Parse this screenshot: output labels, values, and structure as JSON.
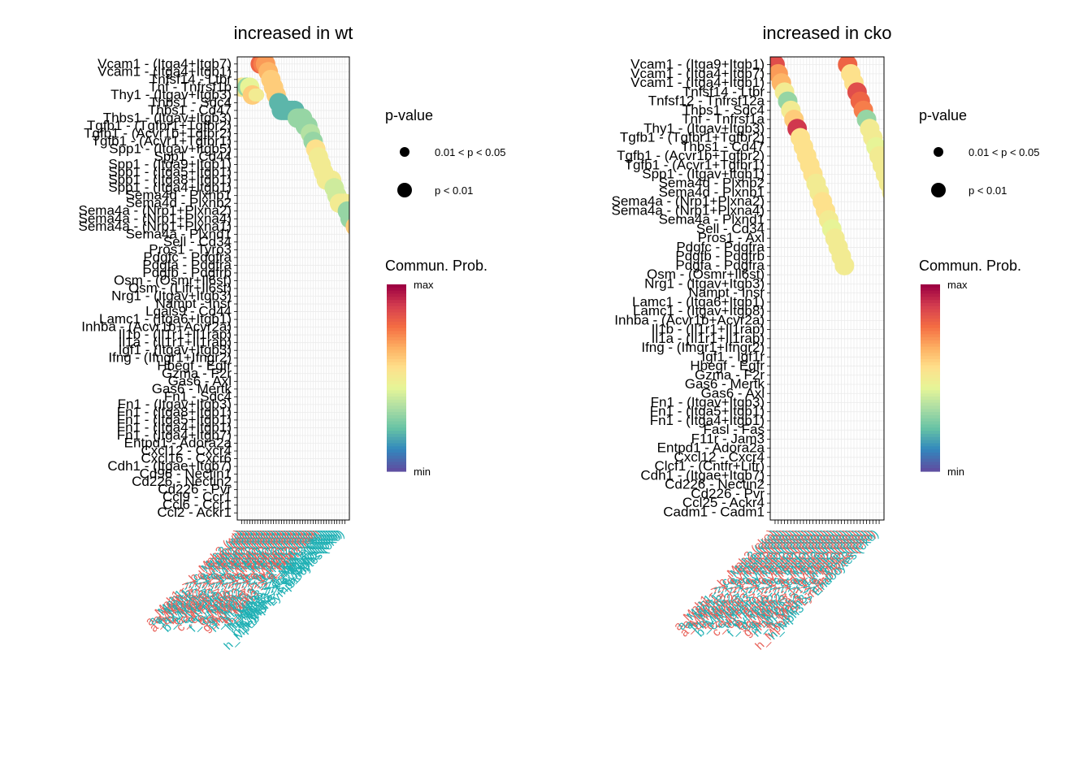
{
  "chart_data": [
    {
      "type": "scatter",
      "title": "increased in wt",
      "y_labels": [
        "Vcam1 - (Itga4+Itgb7)",
        "Vcam1 - (Itga4+Itgb1)",
        "Tnfsf14 - Ltbr",
        "Tnf - Tnfrsf1b",
        "Thy1 - (Itgav+Itgb3)",
        "Thbs1 - Sdc4",
        "Thbs1 - Cd47",
        "Thbs1 - (Itgav+Itgb3)",
        "Tgfb1 - (Tgfbr1+Tgfbr2)",
        "Tgfb1 - (Acvr1b+Tgfbr2)",
        "Tgfb1 - (Acvr1+Tgfbr1)",
        "Spp1 - (Itgav+Itgb5)",
        "Spp1 - Cd44",
        "Spp1 - (Itga9+Itgb1)",
        "Spp1 - (Itga5+Itgb1)",
        "Spp1 - (Itga8+Itgb1)",
        "Spp1 - (Itga4+Itgb1)",
        "Sema4d - Plxnb1",
        "Sema4d - Plxnb2",
        "Sema4a - (Nrp1+Plxna2)",
        "Sema4a - (Nrp1+Plxna4)",
        "Sema4a - (Nrp1+Plxna1)",
        "Sema4a - Plxnd1",
        "Sell - Cd34",
        "Pros1 - Tyro3",
        "Pdgfc - Pdgfra",
        "Pdgfa - Pdgfra",
        "Pdgfb - Pdgfrb",
        "Osm - (Osmr+Il6st)",
        "Osm - (Lifr+Il6st)",
        "Nrg1 - (Itgav+Itgb3)",
        "Nampt - Insr",
        "Lgals9 - Cd44",
        "Lamc1 - (Itga6+Itgb1)",
        "Inhba - (Acvr1b+Acvr2a)",
        "Il1b - (Il1r1+Il1rap)",
        "Il1a - (Il1r1+Il1rap)",
        "Igf1 - (Itgav+Itgb3)",
        "Ifng - (Ifngr1+Ifngr2)",
        "Hbegf - Egfr",
        "Gzma - F2r",
        "Gas6 - Axl",
        "Gas6 - Mertk",
        "Fn1 - Sdc4",
        "Fn1 - (Itgav+Itgb3)",
        "Fn1 - (Itga8+Itgb1)",
        "Fn1 - (Itga5+Itgb1)",
        "Fn1 - (Itga4+Itgb1)",
        "Fn1 - (Itga4+Itgb7)",
        "Entpd1 - Adora2a",
        "Cxcl12 - Cxcr4",
        "Cxcl16 - Cxcr6",
        "Cdh1 - (Itgae+Itgb7)",
        "Cd96 - Nectin1",
        "Cd226 - Nectin2",
        "Cd226 - Pvr",
        "Ccl9 - Ccr1",
        "Ccl6 - Ccr1",
        "Ccl2 - Ackr1"
      ],
      "x_labels": [
        "a_Mph1 -> b_Mph2 (wt)",
        "a_Mph1 -> c_Mph3 (wt)",
        "a_Mph1 -> d_Fibro (wt)",
        "a_Mph1 -> e_Endo (wt)",
        "a_Mph1 -> f_Lympho (wt)",
        "b_Mph2 -> a_Mph1 (wt)",
        "b_Mph2 -> c_Mph3 (wt)",
        "b_Mph2 -> d_Fibro (wt)",
        "b_Mph2 -> e_Endo (wt)",
        "b_Mph2 -> f_Lympho (wt)",
        "c_Mph3 -> a_Mph1 (wt)",
        "c_Mph3 -> b_Mph2 (wt)",
        "c_Mph3 -> d_Fibro (wt)",
        "c_Mph3 -> e_Endo (wt)",
        "c_Mph3 -> f_Lympho (wt)",
        "d_Fibro -> a_Mph1 (wt)",
        "d_Fibro -> b_Mph2 (wt)",
        "d_Fibro -> e_Endo (wt)",
        "e_Endo -> d_Fibro (wt)",
        "f_Lympho -> a_Mph1 (wt)",
        "g_Mph2 -> b_Mph2 (wt)",
        "g_Mph2 -> c_Mph3 (wt)",
        "g_Mph2 -> d_Fibro (wt)",
        "g_Mph2 -> e_Endo (wt)",
        "g_Mph2 -> f_Lympho (wt)",
        "h_Mph3 -> g_Mph2 (wt)",
        "h_Mph3 -> b_Mph2 (wt)",
        "h_Mph3 -> f_Lympho (wt)",
        "h_Mph3 -> d_Fibro (wt)",
        "h_Mph3 -> e_Endo (wt)",
        "h_Mph3 -> a_Mph1 (wt)",
        "h_Mph3 -> c_Mph3 (wt)",
        "h_Mph3 -> a_Mph1 (cko)",
        "h_Mph3 -> b_Mph2 (cko)",
        "h_Mph3 -> c_Mph3 (cko)",
        "h_Mph3 -> d_Fibro (cko)",
        "h_Mph3 -> e_Endo (cko)",
        "h_Mph3 -> f_Lympho (cko)",
        "h_Mph3 -> g_Mph2 (cko)",
        "h_Mph3 -> Lymphocytes (cko)"
      ],
      "points": [
        [
          0,
          3,
          0.55,
          1
        ],
        [
          1,
          3,
          0.5,
          1
        ],
        [
          2,
          3,
          0.3,
          1
        ],
        [
          3,
          3,
          0.45,
          1
        ],
        [
          4,
          4,
          0.6,
          1
        ],
        [
          5,
          4,
          0.5,
          0
        ],
        [
          6,
          4,
          0.5,
          0
        ],
        [
          7,
          0,
          0.8,
          1
        ],
        [
          8,
          0,
          0.75,
          1
        ],
        [
          9,
          0,
          0.7,
          1
        ],
        [
          10,
          1,
          0.65,
          1
        ],
        [
          11,
          2,
          0.6,
          1
        ],
        [
          12,
          3,
          0.6,
          1
        ],
        [
          13,
          4,
          0.6,
          1
        ],
        [
          14,
          5,
          0.2,
          1
        ],
        [
          15,
          6,
          0.2,
          1
        ],
        [
          16,
          6,
          0.2,
          1
        ],
        [
          17,
          6,
          0.2,
          1
        ],
        [
          18,
          6,
          0.2,
          1
        ],
        [
          19,
          6,
          0.2,
          1
        ],
        [
          20,
          6,
          0.2,
          1
        ],
        [
          21,
          7,
          0.3,
          1
        ],
        [
          22,
          7,
          0.3,
          1
        ],
        [
          23,
          7,
          0.3,
          1
        ],
        [
          24,
          8,
          0.3,
          1
        ],
        [
          25,
          8,
          0.3,
          1
        ],
        [
          26,
          9,
          0.35,
          1
        ],
        [
          27,
          10,
          0.3,
          1
        ],
        [
          28,
          11,
          0.55,
          1
        ],
        [
          29,
          12,
          0.5,
          1
        ],
        [
          30,
          13,
          0.5,
          1
        ],
        [
          31,
          14,
          0.5,
          1
        ],
        [
          32,
          15,
          0.5,
          1
        ],
        [
          33,
          15,
          0.5,
          1
        ],
        [
          34,
          15,
          0.5,
          1
        ],
        [
          35,
          16,
          0.4,
          1
        ],
        [
          36,
          17,
          0.4,
          1
        ],
        [
          37,
          18,
          0.5,
          1
        ],
        [
          38,
          18,
          0.5,
          1
        ],
        [
          39,
          18,
          0.5,
          1
        ],
        [
          40,
          19,
          0.3,
          1
        ],
        [
          41,
          20,
          0.3,
          1
        ],
        [
          42,
          20,
          0.3,
          1
        ],
        [
          43,
          21,
          0.6,
          1
        ],
        [
          44,
          21,
          0.6,
          1
        ],
        [
          45,
          22,
          0.5,
          1
        ],
        [
          46,
          22,
          0.5,
          1
        ],
        [
          47,
          22,
          0.5,
          1
        ],
        [
          48,
          22,
          0.5,
          1
        ],
        [
          49,
          23,
          0.25,
          1
        ],
        [
          50,
          24,
          0.25,
          1
        ],
        [
          51,
          25,
          0.25,
          1
        ],
        [
          52,
          25,
          0.25,
          1
        ],
        [
          53,
          26,
          0.25,
          1
        ],
        [
          54,
          26,
          0.25,
          1
        ],
        [
          55,
          27,
          0.25,
          1
        ],
        [
          56,
          27,
          0.25,
          1
        ],
        [
          57,
          28,
          0.25,
          1
        ],
        [
          58,
          28,
          0.25,
          1
        ]
      ]
    },
    {
      "type": "scatter",
      "title": "increased in cko",
      "y_labels": [
        "Vcam1 - (Itga9+Itgb1)",
        "Vcam1 - (Itga4+Itgb7)",
        "Vcam1 - (Itga4+Itgb1)",
        "Tnfsf14 - Ltbr",
        "Tnfsf12 - Tnfrsf12a",
        "Thbs1 - Sdc4",
        "Tnf - Tnfrsf1a",
        "Thy1 - (Itgav+Itgb3)",
        "Tgfb1 - (Tgfbr1+Tgfbr2)",
        "Thbs1 - Cd47",
        "Tgfb1 - (Acvr1b+Tgfbr2)",
        "Tgfb1 - (Acvr1+Tgfbr1)",
        "Spp1 - (Itgav+Itgb1)",
        "Sema4d - Plxnb2",
        "Sema4d - Plxnb1",
        "Sema4a - (Nrp1+Plxna2)",
        "Sema4a - (Nrp1+Plxna4)",
        "Sema4a - Plxnd1",
        "Sell - Cd34",
        "Pros1 - Axl",
        "Pdgfc - Pdgfra",
        "Pdgfb - Pdgfrb",
        "Pdgfa - Pdgfra",
        "Osm - (Osmr+Il6st)",
        "Nrg1 - (Itgav+Itgb3)",
        "Nampt - Insr",
        "Lamc1 - (Itga6+Itgb1)",
        "Lamc1 - (Itgav+Itgb8)",
        "Inhba - (Acvr1b+Acvr2a)",
        "Il1b - (Il1r1+Il1rap)",
        "Il1a - (Il1r1+Il1rap)",
        "Ifng - (Ifngr1+Ifngr2)",
        "Igf1 - Igf1r",
        "Hbegf - Egfr",
        "Gzma - F2r",
        "Gas6 - Mertk",
        "Gas6 - Axl",
        "Fn1 - (Itgav+Itgb3)",
        "Fn1 - (Itga5+Itgb1)",
        "Fn1 - (Itga4+Itgb1)",
        "Fasl - Fas",
        "F11r - Jam3",
        "Entpd1 - Adora2a",
        "Cxcl12 - Cxcr4",
        "Clcf1 - (Cntfr+Lifr)",
        "Cdh1 - (Itgae+Itgb7)",
        "Cd226 - Nectin2",
        "Cd226 - Pvr",
        "Ccl25 - Ackr4",
        "Cadm1 - Cadm1"
      ],
      "x_labels": [
        "a_Mph1 -> b_Mph2 (cko)",
        "a_Mph1 -> c_Mph3 (cko)",
        "a_Mph1 -> d_Fibro (cko)",
        "a_Mph1 -> e_Endo (cko)",
        "a_Mph1 -> f_Lympho (cko)",
        "b_Mph2 -> a_Mph1 (cko)",
        "b_Mph2 -> c_Mph3 (cko)",
        "b_Mph2 -> d_Fibro (cko)",
        "b_Mph2 -> e_Endo (cko)",
        "b_Mph2 -> f_Lympho (cko)",
        "c_Mph3 -> a_Mph1 (cko)",
        "c_Mph3 -> b_Mph2 (cko)",
        "c_Mph3 -> d_Fibro (cko)",
        "c_Mph3 -> e_Endo (cko)",
        "c_Mph3 -> f_Lympho (cko)",
        "d_Fibro -> a_Mph1 (cko)",
        "d_Fibro -> b_Mph2 (cko)",
        "d_Fibro -> e_Endo (cko)",
        "e_Endo -> d_Fibro (cko)",
        "f_Lympho -> a_Mph1 (cko)",
        "g_Mph2 -> b_Mph2 (cko)",
        "g_Mph2 -> c_Mph3 (cko)",
        "g_Mph2 -> d_Fibro (cko)",
        "g_Mph2 -> e_Endo (cko)",
        "g_Mph2 -> f_Lympho (cko)",
        "h_Mph3 -> g_Mph2 (cko)",
        "h_Mph3 -> b_Mph2 (cko)",
        "h_Mph3 -> f_Lympho (cko)",
        "h_Mph3 -> d_Fibro (cko)",
        "h_Mph3 -> e_Endo (cko)",
        "h_Mph3 -> a_Mph1 (cko)",
        "h_Mph3 -> c_Mph3 (cko)",
        "h_Mph3 -> Lymphocytes (cko)",
        "h_Mph3 -> Endocytes (cko)"
      ],
      "points": [
        [
          0,
          0,
          0.85,
          1
        ],
        [
          1,
          1,
          0.7,
          1
        ],
        [
          2,
          2,
          0.65,
          1
        ],
        [
          3,
          3,
          0.5,
          1
        ],
        [
          4,
          4,
          0.3,
          1
        ],
        [
          5,
          5,
          0.5,
          1
        ],
        [
          6,
          6,
          0.6,
          1
        ],
        [
          7,
          7,
          0.9,
          1
        ],
        [
          8,
          8,
          0.55,
          1
        ],
        [
          9,
          9,
          0.55,
          1
        ],
        [
          10,
          10,
          0.55,
          1
        ],
        [
          11,
          11,
          0.55,
          1
        ],
        [
          12,
          12,
          0.55,
          1
        ],
        [
          13,
          13,
          0.5,
          1
        ],
        [
          14,
          14,
          0.5,
          1
        ],
        [
          15,
          15,
          0.55,
          1
        ],
        [
          16,
          16,
          0.55,
          1
        ],
        [
          17,
          17,
          0.5,
          1
        ],
        [
          18,
          18,
          0.45,
          1
        ],
        [
          19,
          19,
          0.5,
          1
        ],
        [
          20,
          20,
          0.5,
          1
        ],
        [
          21,
          21,
          0.5,
          1
        ],
        [
          22,
          22,
          0.5,
          1
        ],
        [
          23,
          0,
          0.8,
          1
        ],
        [
          24,
          1,
          0.55,
          1
        ],
        [
          25,
          2,
          0.55,
          1
        ],
        [
          26,
          3,
          0.85,
          1
        ],
        [
          27,
          4,
          0.8,
          1
        ],
        [
          28,
          5,
          0.75,
          1
        ],
        [
          29,
          6,
          0.3,
          1
        ],
        [
          30,
          7,
          0.5,
          1
        ],
        [
          31,
          8,
          0.5,
          1
        ],
        [
          32,
          9,
          0.45,
          1
        ],
        [
          33,
          10,
          0.5,
          1
        ],
        [
          34,
          11,
          0.5,
          1
        ],
        [
          35,
          12,
          0.5,
          1
        ],
        [
          36,
          13,
          0.5,
          1
        ],
        [
          37,
          14,
          0.5,
          1
        ],
        [
          38,
          15,
          0.5,
          1
        ],
        [
          39,
          16,
          0.55,
          1
        ],
        [
          40,
          17,
          0.55,
          1
        ],
        [
          41,
          18,
          0.5,
          1
        ],
        [
          42,
          19,
          0.5,
          1
        ],
        [
          43,
          20,
          0.5,
          1
        ],
        [
          44,
          21,
          0.3,
          1
        ],
        [
          45,
          22,
          0.3,
          1
        ],
        [
          46,
          23,
          0.35,
          1
        ],
        [
          47,
          24,
          0.25,
          1
        ],
        [
          48,
          25,
          0.3,
          1
        ],
        [
          49,
          26,
          0.2,
          1
        ]
      ]
    }
  ],
  "legend": {
    "pvalue_title": "p-value",
    "pvalue_items": [
      "0.01 < p < 0.05",
      "p < 0.01"
    ],
    "prob_title": "Commun. Prob.",
    "prob_max": "max",
    "prob_min": "min"
  },
  "colors": {
    "label_red": "#e8625a",
    "label_teal": "#1fb0b4",
    "grid": "#ebebeb",
    "colormap": [
      "#5e4fa2",
      "#3288bd",
      "#66c2a5",
      "#abdda4",
      "#e6f598",
      "#fee08b",
      "#fdae61",
      "#f46d43",
      "#d53e4f",
      "#9e0142"
    ]
  }
}
